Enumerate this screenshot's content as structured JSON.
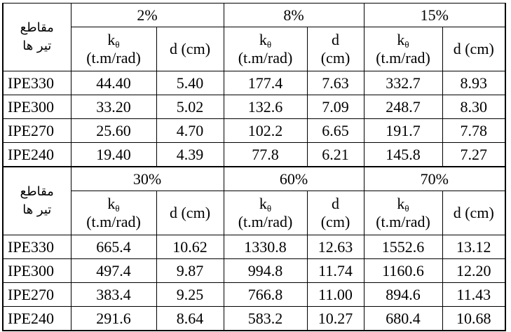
{
  "blocks": [
    {
      "corner": [
        "مقاطع",
        "تیر ها"
      ],
      "groups": [
        "2%",
        "8%",
        "15%"
      ],
      "subheaders": [
        {
          "symbol": "k",
          "subscript": "θ",
          "unit": "(t.m/rad)"
        },
        {
          "text": "d (cm)"
        },
        {
          "symbol": "k",
          "subscript": "θ",
          "unit": "(t.m/rad)"
        },
        {
          "text": "d (cm)"
        },
        {
          "symbol": "k",
          "subscript": "θ",
          "unit": "(t.m/rad)"
        },
        {
          "text": "d (cm)"
        }
      ],
      "rows": [
        [
          "IPE330",
          "44.40",
          "5.40",
          "177.4",
          "7.63",
          "332.7",
          "8.93"
        ],
        [
          "IPE300",
          "33.20",
          "5.02",
          "132.6",
          "7.09",
          "248.7",
          "8.30"
        ],
        [
          "IPE270",
          "25.60",
          "4.70",
          "102.2",
          "6.65",
          "191.7",
          "7.78"
        ],
        [
          "IPE240",
          "19.40",
          "4.39",
          "77.8",
          "6.21",
          "145.8",
          "7.27"
        ]
      ]
    },
    {
      "corner": [
        "مقاطع",
        "تیر ها"
      ],
      "groups": [
        "30%",
        "60%",
        "70%"
      ],
      "subheaders": [
        {
          "symbol": "k",
          "subscript": "θ",
          "unit": "(t.m/rad)"
        },
        {
          "text": "d (cm)"
        },
        {
          "symbol": "k",
          "subscript": "θ",
          "unit": "(t.m/rad)"
        },
        {
          "text": "d (cm)"
        },
        {
          "symbol": "k",
          "subscript": "θ",
          "unit": "(t.m/rad)"
        },
        {
          "text": "d (cm)"
        }
      ],
      "rows": [
        [
          "IPE330",
          "665.4",
          "10.62",
          "1330.8",
          "12.63",
          "1552.6",
          "13.12"
        ],
        [
          "IPE300",
          "497.4",
          "9.87",
          "994.8",
          "11.74",
          "1160.6",
          "12.20"
        ],
        [
          "IPE270",
          "383.4",
          "9.25",
          "766.8",
          "11.00",
          "894.6",
          "11.43"
        ],
        [
          "IPE240",
          "291.6",
          "8.64",
          "583.2",
          "10.27",
          "680.4",
          "10.68"
        ]
      ]
    }
  ]
}
